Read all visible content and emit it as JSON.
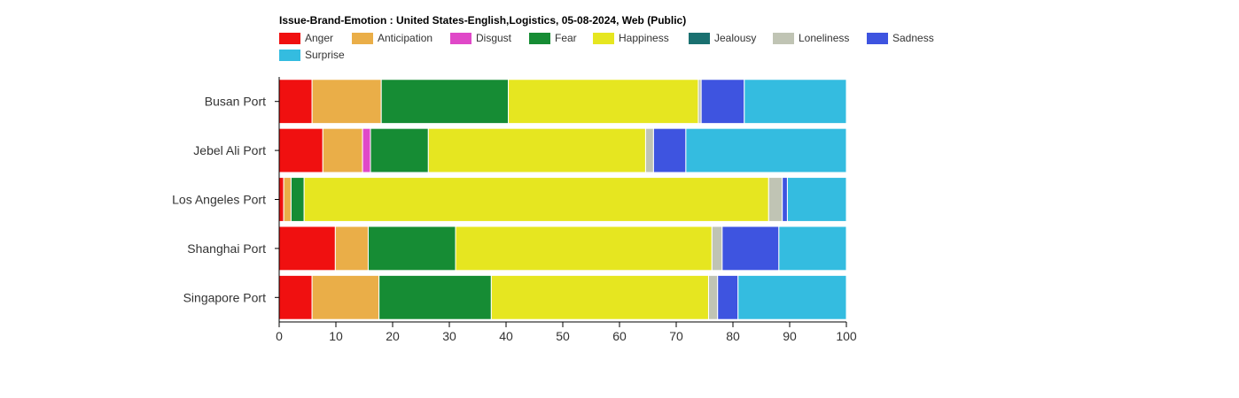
{
  "chart_data": {
    "type": "bar",
    "orientation": "horizontal",
    "stacked": true,
    "title": "Issue-Brand-Emotion : United States-English,Logistics, 05-08-2024, Web (Public)",
    "categories": [
      "Busan Port",
      "Jebel Ali Port",
      "Los Angeles Port",
      "Shanghai Port",
      "Singapore Port"
    ],
    "xlim": [
      0,
      100
    ],
    "xticks": [
      "0",
      "10",
      "20",
      "30",
      "40",
      "50",
      "60",
      "70",
      "80",
      "90",
      "100"
    ],
    "xlabel": "",
    "ylabel": "",
    "grid": false,
    "legend_position": "top-left",
    "series": [
      {
        "name": "Anger",
        "color": "#f01010",
        "values": [
          5.8,
          7.7,
          0.8,
          9.9,
          5.8
        ]
      },
      {
        "name": "Anticipation",
        "color": "#eaae48",
        "values": [
          12.2,
          7.0,
          1.3,
          5.8,
          11.8
        ]
      },
      {
        "name": "Disgust",
        "color": "#e048c8",
        "values": [
          0,
          1.4,
          0,
          0,
          0
        ]
      },
      {
        "name": "Fear",
        "color": "#168c34",
        "values": [
          22.4,
          10.2,
          2.3,
          15.4,
          19.8
        ]
      },
      {
        "name": "Happiness",
        "color": "#e6e620",
        "values": [
          33.5,
          38.3,
          81.9,
          45.2,
          38.3
        ]
      },
      {
        "name": "Jealousy",
        "color": "#1a7070",
        "values": [
          0,
          0,
          0,
          0,
          0
        ]
      },
      {
        "name": "Loneliness",
        "color": "#c0c4b4",
        "values": [
          0.5,
          1.4,
          2.4,
          1.8,
          1.6
        ]
      },
      {
        "name": "Sadness",
        "color": "#3e54e0",
        "values": [
          7.6,
          5.7,
          0.9,
          10.0,
          3.6
        ]
      },
      {
        "name": "Surprise",
        "color": "#34bce0",
        "values": [
          18.0,
          28.3,
          10.4,
          11.9,
          19.1
        ]
      }
    ]
  }
}
